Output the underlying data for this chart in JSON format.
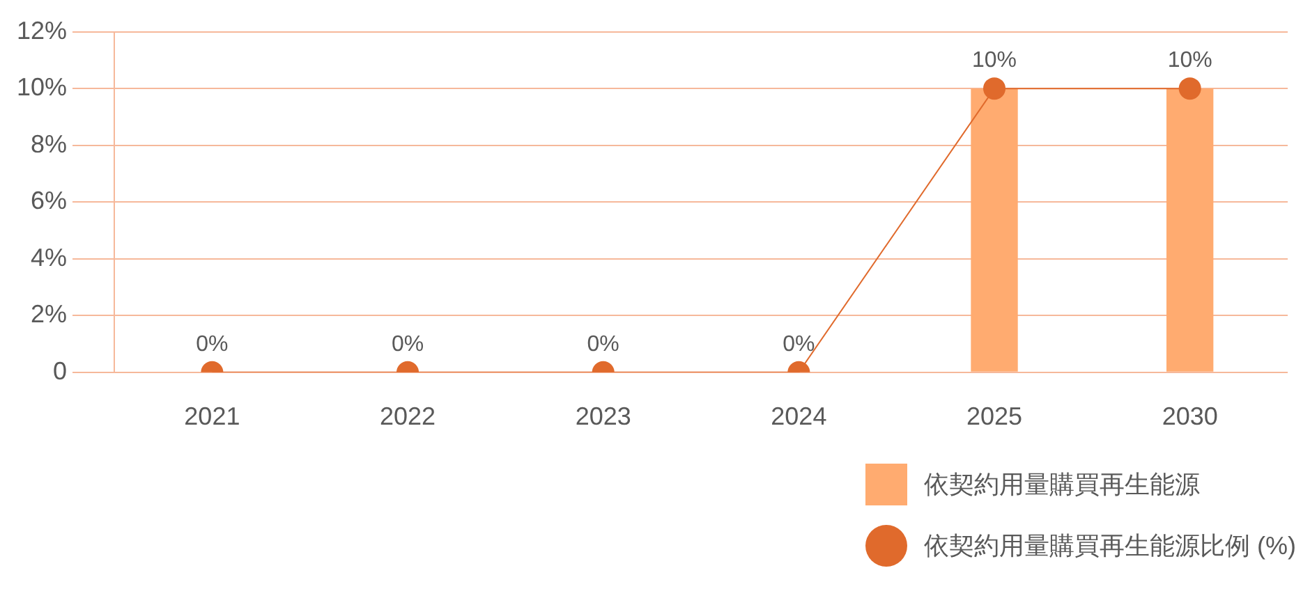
{
  "chart_data": {
    "type": "bar",
    "categories": [
      "2021",
      "2022",
      "2023",
      "2024",
      "2025",
      "2030"
    ],
    "series": [
      {
        "name": "依契約用量購買再生能源",
        "color": "#ffab70",
        "values": [
          0,
          0,
          0,
          0,
          10,
          10
        ]
      },
      {
        "name": "依契約用量購買再生能源比例 (%)",
        "type": "line",
        "color": "#e06a2c",
        "values": [
          0,
          0,
          0,
          0,
          10,
          10
        ],
        "value_labels": [
          "0%",
          "0%",
          "0%",
          "0%",
          "10%",
          "10%"
        ]
      }
    ],
    "ylim": [
      0,
      12
    ],
    "yticks": [
      {
        "value": 0,
        "label": "0"
      },
      {
        "value": 2,
        "label": "2%"
      },
      {
        "value": 4,
        "label": "4%"
      },
      {
        "value": 6,
        "label": "6%"
      },
      {
        "value": 8,
        "label": "8%"
      },
      {
        "value": 10,
        "label": "10%"
      },
      {
        "value": 12,
        "label": "12%"
      }
    ],
    "grid": "y",
    "legend": "bottom right",
    "marker": "circle"
  }
}
